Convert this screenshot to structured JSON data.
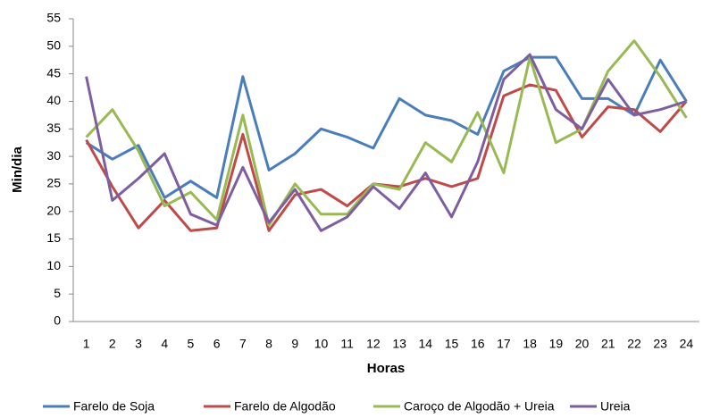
{
  "chart_data": {
    "type": "line",
    "x_label": "Horas",
    "y_label": "Min/dia",
    "categories": [
      1,
      2,
      3,
      4,
      5,
      6,
      7,
      8,
      9,
      10,
      11,
      12,
      13,
      14,
      15,
      16,
      17,
      18,
      19,
      20,
      21,
      22,
      23,
      24
    ],
    "ylim": [
      0,
      55
    ],
    "yticks": [
      0,
      5,
      10,
      15,
      20,
      25,
      30,
      35,
      40,
      45,
      50,
      55
    ],
    "grid": false,
    "legend": "bottom",
    "series": [
      {
        "name": "Farelo de Soja",
        "color": "#4a7ebb",
        "values": [
          32.5,
          29.5,
          32,
          22.5,
          25.5,
          22.5,
          44.5,
          27.5,
          30.5,
          35,
          33.5,
          31.5,
          40.5,
          37.5,
          36.5,
          34,
          45.5,
          48,
          48,
          40.5,
          40.5,
          37.5,
          47.5,
          40
        ]
      },
      {
        "name": "Farelo de Algodão",
        "color": "#be4b48",
        "values": [
          33,
          24.5,
          17,
          22,
          16.5,
          17,
          34,
          16.5,
          23,
          24,
          21,
          25,
          24.5,
          26,
          24.5,
          26,
          41,
          43,
          42,
          33.5,
          39,
          38.5,
          34.5,
          40
        ]
      },
      {
        "name": "Caroço de Algodão + Ureia",
        "color": "#98b954",
        "values": [
          33.5,
          38.5,
          31,
          21,
          23.5,
          18.5,
          37.5,
          17.5,
          25,
          19.5,
          19.5,
          25,
          24,
          32.5,
          29,
          38,
          27,
          48,
          32.5,
          35,
          45.5,
          51,
          44.5,
          37
        ]
      },
      {
        "name": "Ureia",
        "color": "#7d5fa0",
        "values": [
          44.5,
          22,
          26,
          30.5,
          19.5,
          17.5,
          28,
          18,
          24,
          16.5,
          19,
          24.5,
          20.5,
          27,
          19,
          29,
          44,
          48.5,
          38.5,
          35,
          44,
          37.5,
          38.5,
          40
        ]
      }
    ]
  }
}
